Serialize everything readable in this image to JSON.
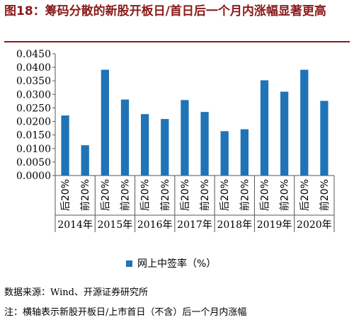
{
  "title": "图18：筹码分散的新股开板日/首日后一个月内涨幅显著更高",
  "source": "数据来源：Wind、开源证券研究所",
  "note": "注：横轴表示新股开板日/上市首日（不含）后一个月内涨幅",
  "colors": {
    "bar": "#1f73b7",
    "title": "#8b1a1a"
  },
  "chart_data": {
    "type": "bar",
    "ylim": [
      0,
      0.045
    ],
    "yticks": [
      "0.0000",
      "0.0050",
      "0.0100",
      "0.0150",
      "0.0200",
      "0.0250",
      "0.0300",
      "0.0350",
      "0.0400",
      "0.0450"
    ],
    "categories": [
      "后20%",
      "前20%",
      "后20%",
      "前20%",
      "后20%",
      "前20%",
      "后20%",
      "前20%",
      "后20%",
      "前20%",
      "后20%",
      "前20%",
      "后20%",
      "前20%"
    ],
    "groups": [
      "2014年",
      "2015年",
      "2016年",
      "2017年",
      "2018年",
      "2019年",
      "2020年"
    ],
    "series": [
      {
        "name": "网上中签率（%）",
        "values": [
          0.0222,
          0.0112,
          0.0391,
          0.0281,
          0.0227,
          0.0209,
          0.0279,
          0.0235,
          0.0164,
          0.0171,
          0.0352,
          0.031,
          0.0391,
          0.0276
        ]
      }
    ],
    "legend_position": "bottom",
    "grid": false
  }
}
